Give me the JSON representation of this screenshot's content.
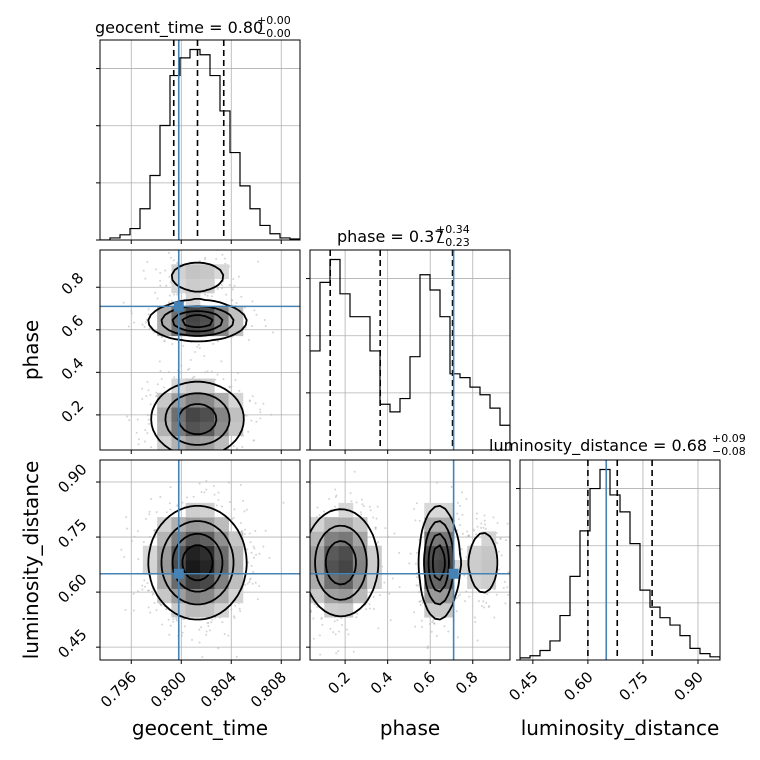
{
  "chart_data": {
    "type": "corner",
    "parameters": [
      "geocent_time",
      "phase",
      "luminosity_distance"
    ],
    "titles": [
      {
        "param": "geocent_time",
        "label": "geocent_time = 0.80",
        "sup": "+0.00",
        "sub": "−0.00"
      },
      {
        "param": "phase",
        "label": "phase = 0.37",
        "sup": "+0.34",
        "sub": "−0.23"
      },
      {
        "param": "luminosity_distance",
        "label": "luminosity_distance = 0.68",
        "sup": "+0.09",
        "sub": "−0.08"
      }
    ],
    "axis_labels": {
      "geocent_time": "geocent_time",
      "phase": "phase",
      "luminosity_distance": "luminosity_distance"
    },
    "ranges": {
      "geocent_time": [
        0.7935,
        0.8095
      ],
      "phase": [
        0.035,
        0.975
      ],
      "luminosity_distance": [
        0.415,
        0.96
      ]
    },
    "ticks": {
      "geocent_time": [
        {
          "v": 0.796,
          "t": "0.796"
        },
        {
          "v": 0.8,
          "t": "0.800"
        },
        {
          "v": 0.804,
          "t": "0.804"
        },
        {
          "v": 0.808,
          "t": "0.808"
        }
      ],
      "phase": [
        {
          "v": 0.2,
          "t": "0.2"
        },
        {
          "v": 0.4,
          "t": "0.4"
        },
        {
          "v": 0.6,
          "t": "0.6"
        },
        {
          "v": 0.8,
          "t": "0.8"
        }
      ],
      "luminosity_distance": [
        {
          "v": 0.45,
          "t": "0.45"
        },
        {
          "v": 0.6,
          "t": "0.60"
        },
        {
          "v": 0.75,
          "t": "0.75"
        },
        {
          "v": 0.9,
          "t": "0.90"
        }
      ]
    },
    "truths": {
      "geocent_time": 0.7998,
      "phase": 0.71,
      "luminosity_distance": 0.65
    },
    "quantiles": {
      "geocent_time": [
        0.7994,
        0.8013,
        0.8034
      ],
      "phase": [
        0.13,
        0.365,
        0.705
      ],
      "luminosity_distance": [
        0.6,
        0.68,
        0.775
      ]
    },
    "histograms": {
      "geocent_time": {
        "min": 0.7935,
        "max": 0.8095,
        "counts": [
          0,
          2,
          5,
          11,
          30,
          62,
          110,
          158,
          175,
          183,
          178,
          158,
          124,
          84,
          52,
          30,
          14,
          6,
          2,
          1
        ]
      },
      "phase": {
        "min": 0.035,
        "max": 0.975,
        "counts": [
          52,
          88,
          100,
          82,
          70,
          70,
          52,
          24,
          20,
          27,
          49,
          92,
          84,
          70,
          40,
          38,
          33,
          29,
          22,
          13
        ]
      },
      "luminosity_distance": {
        "min": 0.415,
        "max": 0.96,
        "counts": [
          2,
          4,
          9,
          18,
          42,
          79,
          122,
          162,
          180,
          156,
          140,
          110,
          66,
          50,
          40,
          33,
          23,
          11,
          6,
          3
        ]
      }
    },
    "grid": true,
    "legend": "none"
  }
}
